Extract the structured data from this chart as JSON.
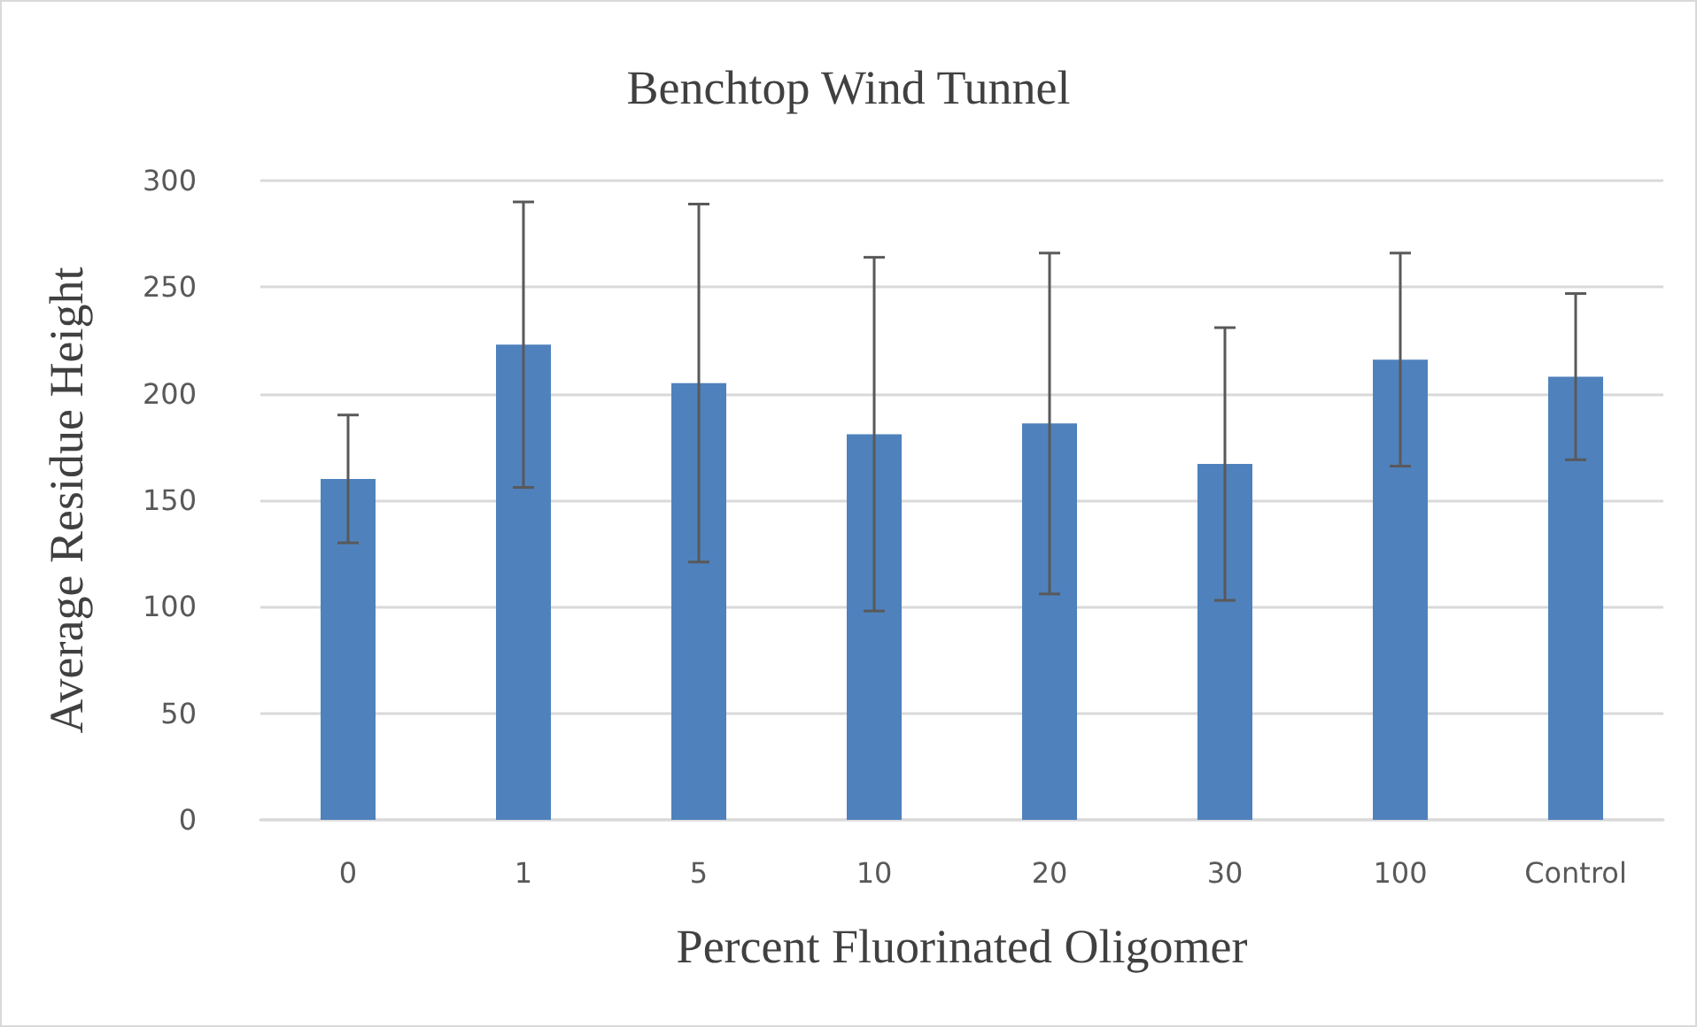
{
  "chart_data": {
    "type": "bar",
    "title": "Benchtop Wind Tunnel",
    "xlabel": "Percent Fluorinated Oligomer",
    "ylabel": "Average Residue Height",
    "categories": [
      "0",
      "1",
      "5",
      "10",
      "20",
      "30",
      "100",
      "Control"
    ],
    "values": [
      160,
      223,
      205,
      181,
      186,
      167,
      216,
      208
    ],
    "errors": [
      30,
      67,
      84,
      83,
      80,
      64,
      50,
      39
    ],
    "color": "#4f81bd",
    "ylim": [
      0,
      300
    ],
    "yticks": [
      0,
      50,
      100,
      150,
      200,
      250,
      300
    ],
    "grid": "y"
  }
}
